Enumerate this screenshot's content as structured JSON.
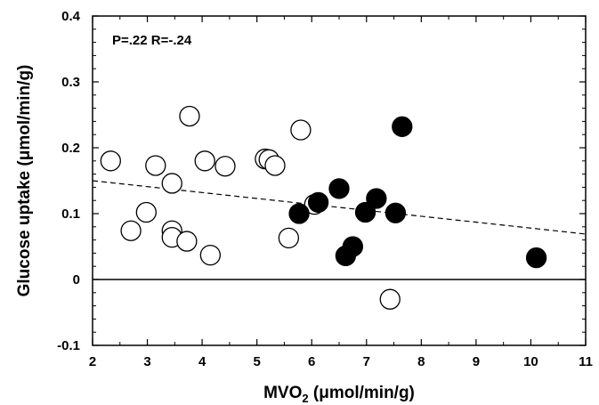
{
  "chart_data": {
    "type": "scatter",
    "title": "",
    "xlabel": "MVO",
    "xlabel_sub": "2",
    "xlabel_unit": " (μmol/min/g)",
    "ylabel": "Glucose uptake (μmol/min/g)",
    "annotation": "P=.22 R=-.24",
    "xlim": [
      2,
      11
    ],
    "ylim": [
      -0.1,
      0.4
    ],
    "x_ticks": [
      "2",
      "3",
      "4",
      "5",
      "6",
      "7",
      "8",
      "9",
      "10",
      "11"
    ],
    "y_ticks": [
      "-0.1",
      "0",
      "0.1",
      "0.2",
      "0.3",
      "0.4"
    ],
    "grid": false,
    "zero_line": 0,
    "regression_line": {
      "x": [
        2,
        11
      ],
      "y": [
        0.15,
        0.069
      ],
      "style": "dashed"
    },
    "series": [
      {
        "marker": "open-circle",
        "points": [
          {
            "x": 2.33,
            "y": 0.18
          },
          {
            "x": 2.7,
            "y": 0.074
          },
          {
            "x": 2.98,
            "y": 0.102
          },
          {
            "x": 3.15,
            "y": 0.173
          },
          {
            "x": 3.45,
            "y": 0.146
          },
          {
            "x": 3.45,
            "y": 0.074
          },
          {
            "x": 3.45,
            "y": 0.064
          },
          {
            "x": 3.72,
            "y": 0.058
          },
          {
            "x": 3.77,
            "y": 0.248
          },
          {
            "x": 4.05,
            "y": 0.18
          },
          {
            "x": 4.15,
            "y": 0.037
          },
          {
            "x": 4.42,
            "y": 0.172
          },
          {
            "x": 5.15,
            "y": 0.183
          },
          {
            "x": 5.22,
            "y": 0.182
          },
          {
            "x": 5.33,
            "y": 0.173
          },
          {
            "x": 5.58,
            "y": 0.063
          },
          {
            "x": 5.8,
            "y": 0.227
          },
          {
            "x": 6.05,
            "y": 0.114
          },
          {
            "x": 7.43,
            "y": -0.03
          }
        ]
      },
      {
        "marker": "filled-circle",
        "points": [
          {
            "x": 5.77,
            "y": 0.1
          },
          {
            "x": 6.12,
            "y": 0.117
          },
          {
            "x": 6.5,
            "y": 0.138
          },
          {
            "x": 6.62,
            "y": 0.036
          },
          {
            "x": 6.75,
            "y": 0.05
          },
          {
            "x": 6.98,
            "y": 0.102
          },
          {
            "x": 7.18,
            "y": 0.123
          },
          {
            "x": 7.53,
            "y": 0.101
          },
          {
            "x": 7.65,
            "y": 0.232
          },
          {
            "x": 10.1,
            "y": 0.033
          }
        ]
      }
    ]
  }
}
